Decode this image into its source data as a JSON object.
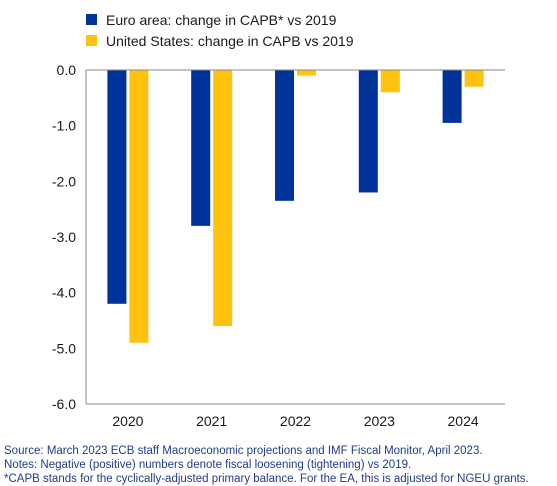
{
  "chart_data": {
    "type": "bar",
    "categories": [
      "2020",
      "2021",
      "2022",
      "2023",
      "2024"
    ],
    "series": [
      {
        "name": "Euro area: change in CAPB* vs 2019",
        "values": [
          -4.2,
          -2.8,
          -2.35,
          -2.2,
          -0.95
        ],
        "color": "#003399"
      },
      {
        "name": "United States: change in CAPB vs 2019",
        "values": [
          -4.9,
          -4.6,
          -0.1,
          -0.4,
          -0.3
        ],
        "color": "#FFC20E"
      }
    ],
    "yticks": [
      "0.0",
      "-1.0",
      "-2.0",
      "-3.0",
      "-4.0",
      "-5.0",
      "-6.0"
    ],
    "ylim": [
      -6,
      0
    ],
    "legend_position": "top-left",
    "grid": false
  },
  "notes": {
    "source": "Source: March 2023 ECB staff Macroeconomic projections and IMF Fiscal Monitor, April 2023.",
    "notes": "Notes: Negative (positive) numbers denote fiscal loosening (tightening) vs 2019.",
    "footnote": "*CAPB stands for the cyclically-adjusted primary balance. For the EA, this is adjusted for NGEU grants."
  }
}
